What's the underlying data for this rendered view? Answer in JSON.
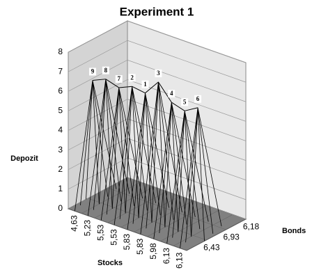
{
  "chart_data": {
    "type": "surface3d",
    "title": "Experiment 1",
    "y_label": "Depozit",
    "x_label": "Stocks",
    "z_label": "Bonds",
    "categories": [
      "4,63",
      "5,23",
      "5,53",
      "5,53",
      "5,83",
      "5,83",
      "5,98",
      "6,13",
      "6,13"
    ],
    "depth_categories": [
      "6,43",
      "6,93",
      "6,18"
    ],
    "point_labels": [
      "9",
      "8",
      "7",
      "2",
      "1",
      "3",
      "4",
      "5",
      "6"
    ],
    "values": [
      6.2,
      6.5,
      6.3,
      6.6,
      6.5,
      7.3,
      6.5,
      6.3,
      6.7
    ],
    "ylim": [
      0,
      8
    ],
    "yticks": [
      0,
      1,
      2,
      3,
      4,
      5,
      6,
      7,
      8
    ],
    "grid": true,
    "color": "#000000",
    "floor_color": "#808080",
    "wall_color": "#e8e8e8"
  }
}
